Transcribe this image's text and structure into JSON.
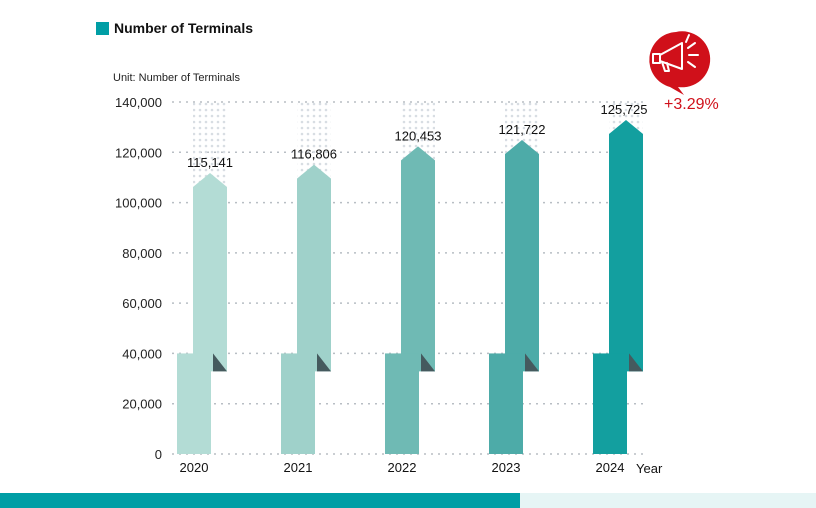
{
  "header": {
    "title": "Number of Terminals",
    "unit_label": "Unit: Number of Terminals"
  },
  "colors": {
    "accent": "#009ea5",
    "growth": "#d0101a",
    "fold": "#455a5e",
    "bars": [
      "#b3dcd5",
      "#9fd1ca",
      "#6fbab4",
      "#4daba8",
      "#139f9f"
    ]
  },
  "badge": {
    "icon": "megaphone-icon",
    "growth_text": "+3.29%"
  },
  "chart_data": {
    "type": "bar",
    "title": "Number of Terminals",
    "xlabel": "Year",
    "ylabel": "Unit: Number of Terminals",
    "categories": [
      "2020",
      "2021",
      "2022",
      "2023",
      "2024"
    ],
    "values": [
      115141,
      116806,
      120453,
      121722,
      125725
    ],
    "value_labels": [
      "115,141",
      "116,806",
      "120,453",
      "121,722",
      "125,725"
    ],
    "ylim": [
      0,
      140000
    ],
    "yticks": [
      0,
      20000,
      40000,
      60000,
      80000,
      100000,
      120000,
      140000
    ],
    "ytick_labels": [
      "0",
      "20,000",
      "40,000",
      "60,000",
      "80,000",
      "100,000",
      "120,000",
      "140,000"
    ],
    "grid": true,
    "annotation": "+3.29%"
  }
}
